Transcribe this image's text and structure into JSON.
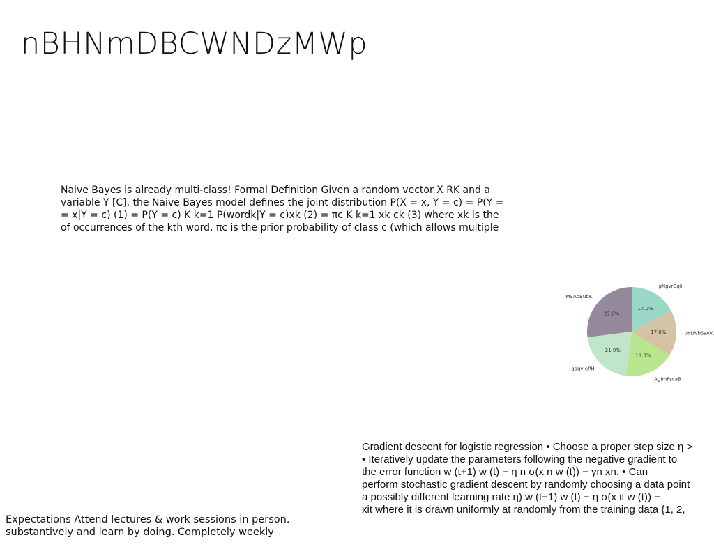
{
  "title": "nBHNmDBCWNDzMWp",
  "naive_bayes_text": {
    "lines": [
      "Naive Bayes is already multi-class! Formal Definition Given a random vector X  RK and a",
      "variable Y  [C], the Naive Bayes model defines the joint distribution P(X = x, Y = c) = P(Y =",
      "= x|Y = c) (1) = P(Y = c) K  k=1 P(wordk|Y = c)xk (2) = πc K  k=1 xk ck (3) where xk is the",
      "of occurrences of the kth word, πc is the prior probability of class c (which allows multiple"
    ]
  },
  "gradient_text": {
    "lines": [
      "Gradient descent for logistic regression • Choose a proper step size η >",
      "• Iteratively update the parameters following the negative gradient to",
      "the error function w (t+1)  w (t) − η  n  σ(x n w (t)) − yn  xn. • Can",
      "perform stochastic gradient descent by randomly choosing a data point",
      "a possibly different learning rate η) w (t+1)  w (t) − η  σ(x it w (t)) −",
      " xit where it is drawn uniformly at randomly from the training data {1, 2,"
    ]
  },
  "expectations_text": {
    "lines": [
      "Expectations  Attend lectures & work sessions in person. ",
      "substantively and learn by doing.  Completely weekly"
    ]
  },
  "chart_data": {
    "type": "pie",
    "start_angle_deg": 90,
    "direction": "clockwise",
    "slices": [
      {
        "label": "gNgvrBqli",
        "value": 17.0,
        "display": "17.0%",
        "color": "#99d8c7"
      },
      {
        "label": "pYLWbSsAVu",
        "value": 17.0,
        "display": "17.0%",
        "color": "#d5c3a5"
      },
      {
        "label": "AgImFscaB",
        "value": 18.0,
        "display": "18.0%",
        "color": "#b8e68e"
      },
      {
        "label": "gogv ePH",
        "value": 21.0,
        "display": "21.0%",
        "color": "#bfe6c9"
      },
      {
        "label": "MSApBubK",
        "value": 27.0,
        "display": "27.0%",
        "color": "#958a9c"
      }
    ]
  }
}
